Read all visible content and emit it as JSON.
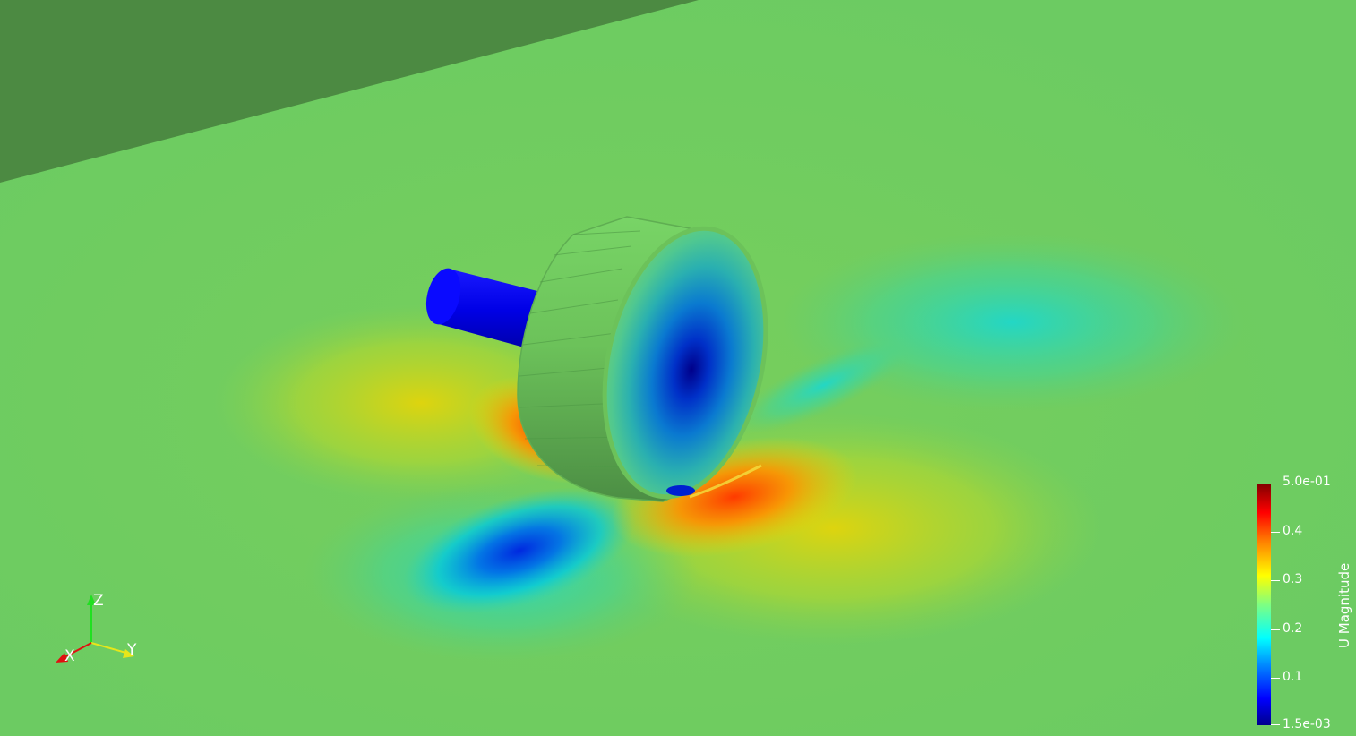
{
  "colors": {
    "background_field": "#6fcc5e",
    "far_wall": "#4c8a42",
    "low_velocity": "#0000c8",
    "high_velocity": "#d40000"
  },
  "scene": {
    "objects": [
      "domain-floor-slice",
      "far-wall",
      "cylinder-disk",
      "shaft"
    ]
  },
  "orientation_axes": {
    "x_label": "X",
    "y_label": "Y",
    "z_label": "Z"
  },
  "legend": {
    "title": "U Magnitude",
    "max_label": "5.0e-01",
    "min_label": "1.5e-03",
    "ticks": [
      "0.4",
      "0.3",
      "0.2",
      "0.1"
    ],
    "range": [
      0.0015,
      0.5
    ]
  }
}
